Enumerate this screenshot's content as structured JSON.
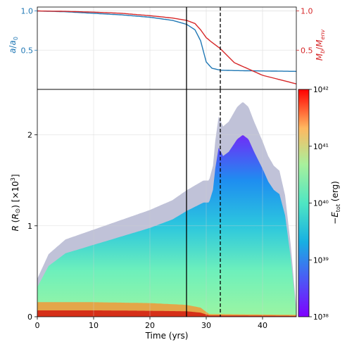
{
  "chart_data": [
    {
      "type": "line",
      "panel": "top",
      "xlim": [
        0,
        46
      ],
      "x": [
        0,
        5,
        10,
        15,
        20,
        24,
        26.5,
        28,
        29,
        30,
        31,
        32.5,
        35,
        40,
        46
      ],
      "series": [
        {
          "axis": "left",
          "color": "#1f77b4",
          "values": [
            1.0,
            0.99,
            0.97,
            0.95,
            0.92,
            0.88,
            0.83,
            0.76,
            0.62,
            0.35,
            0.27,
            0.245,
            0.24,
            0.235,
            0.23
          ]
        },
        {
          "axis": "right",
          "color": "#d62728",
          "values": [
            1.0,
            0.995,
            0.985,
            0.97,
            0.94,
            0.91,
            0.88,
            0.84,
            0.76,
            0.66,
            0.6,
            0.52,
            0.34,
            0.18,
            0.07
          ]
        }
      ],
      "ylabel_left": "a/a₀",
      "ylabel_right": "M_b/M_env",
      "yticks_left": [
        "0.5",
        "1.0"
      ],
      "yticks_right": [
        "0.5",
        "1.0"
      ],
      "ylim_left": [
        0.0,
        1.05
      ],
      "ylim_right": [
        0.0,
        1.05
      ],
      "left_color": "#1f77b4",
      "right_color": "#d62728",
      "vlines": [
        {
          "x": 26.5,
          "style": "solid"
        },
        {
          "x": 32.5,
          "style": "dashed"
        }
      ],
      "grid": true
    },
    {
      "type": "heatmap",
      "panel": "bottom",
      "xlabel": "Time (yrs)",
      "ylabel": "R (R⊙) [×10³]",
      "xlim": [
        0,
        46
      ],
      "ylim": [
        0,
        2.5
      ],
      "xticks": [
        "0",
        "10",
        "20",
        "30",
        "40"
      ],
      "yticks": [
        "0",
        "1",
        "2"
      ],
      "envelope_upper": {
        "x": [
          0,
          2,
          5,
          10,
          15,
          20,
          24,
          26.5,
          28,
          29.5,
          30.5,
          31.2,
          31.6,
          32.2,
          33,
          34,
          35.5,
          36.5,
          37.5,
          38.5,
          40,
          41,
          42,
          43,
          44,
          45,
          46
        ],
        "y": [
          0.35,
          0.6,
          0.75,
          0.85,
          0.95,
          1.05,
          1.15,
          1.25,
          1.3,
          1.35,
          1.35,
          1.5,
          1.75,
          2.0,
          1.9,
          1.95,
          2.1,
          2.15,
          2.1,
          1.95,
          1.75,
          1.6,
          1.5,
          1.45,
          1.2,
          0.7,
          0.05
        ]
      },
      "bands": [
        {
          "x": [
            0,
            10,
            20,
            26.5,
            29,
            30.5,
            46
          ],
          "y": [
            0.16,
            0.16,
            0.15,
            0.13,
            0.1,
            0.03,
            0.02
          ],
          "color": "#ff8c2a"
        },
        {
          "x": [
            0,
            10,
            20,
            26.5,
            29,
            30.5,
            46
          ],
          "y": [
            0.07,
            0.07,
            0.065,
            0.06,
            0.045,
            0.015,
            0.01
          ],
          "color": "#d21a10"
        }
      ],
      "vlines": [
        {
          "x": 26.5,
          "style": "solid"
        },
        {
          "x": 32.5,
          "style": "dashed"
        }
      ],
      "grid": true,
      "colorbar": {
        "label": "−E_tot (erg)",
        "ticks": [
          "10³⁸",
          "10³⁹",
          "10⁴⁰",
          "10⁴¹",
          "10⁴²"
        ],
        "log_range": [
          38,
          42
        ],
        "colormap": "rainbow"
      }
    }
  ]
}
